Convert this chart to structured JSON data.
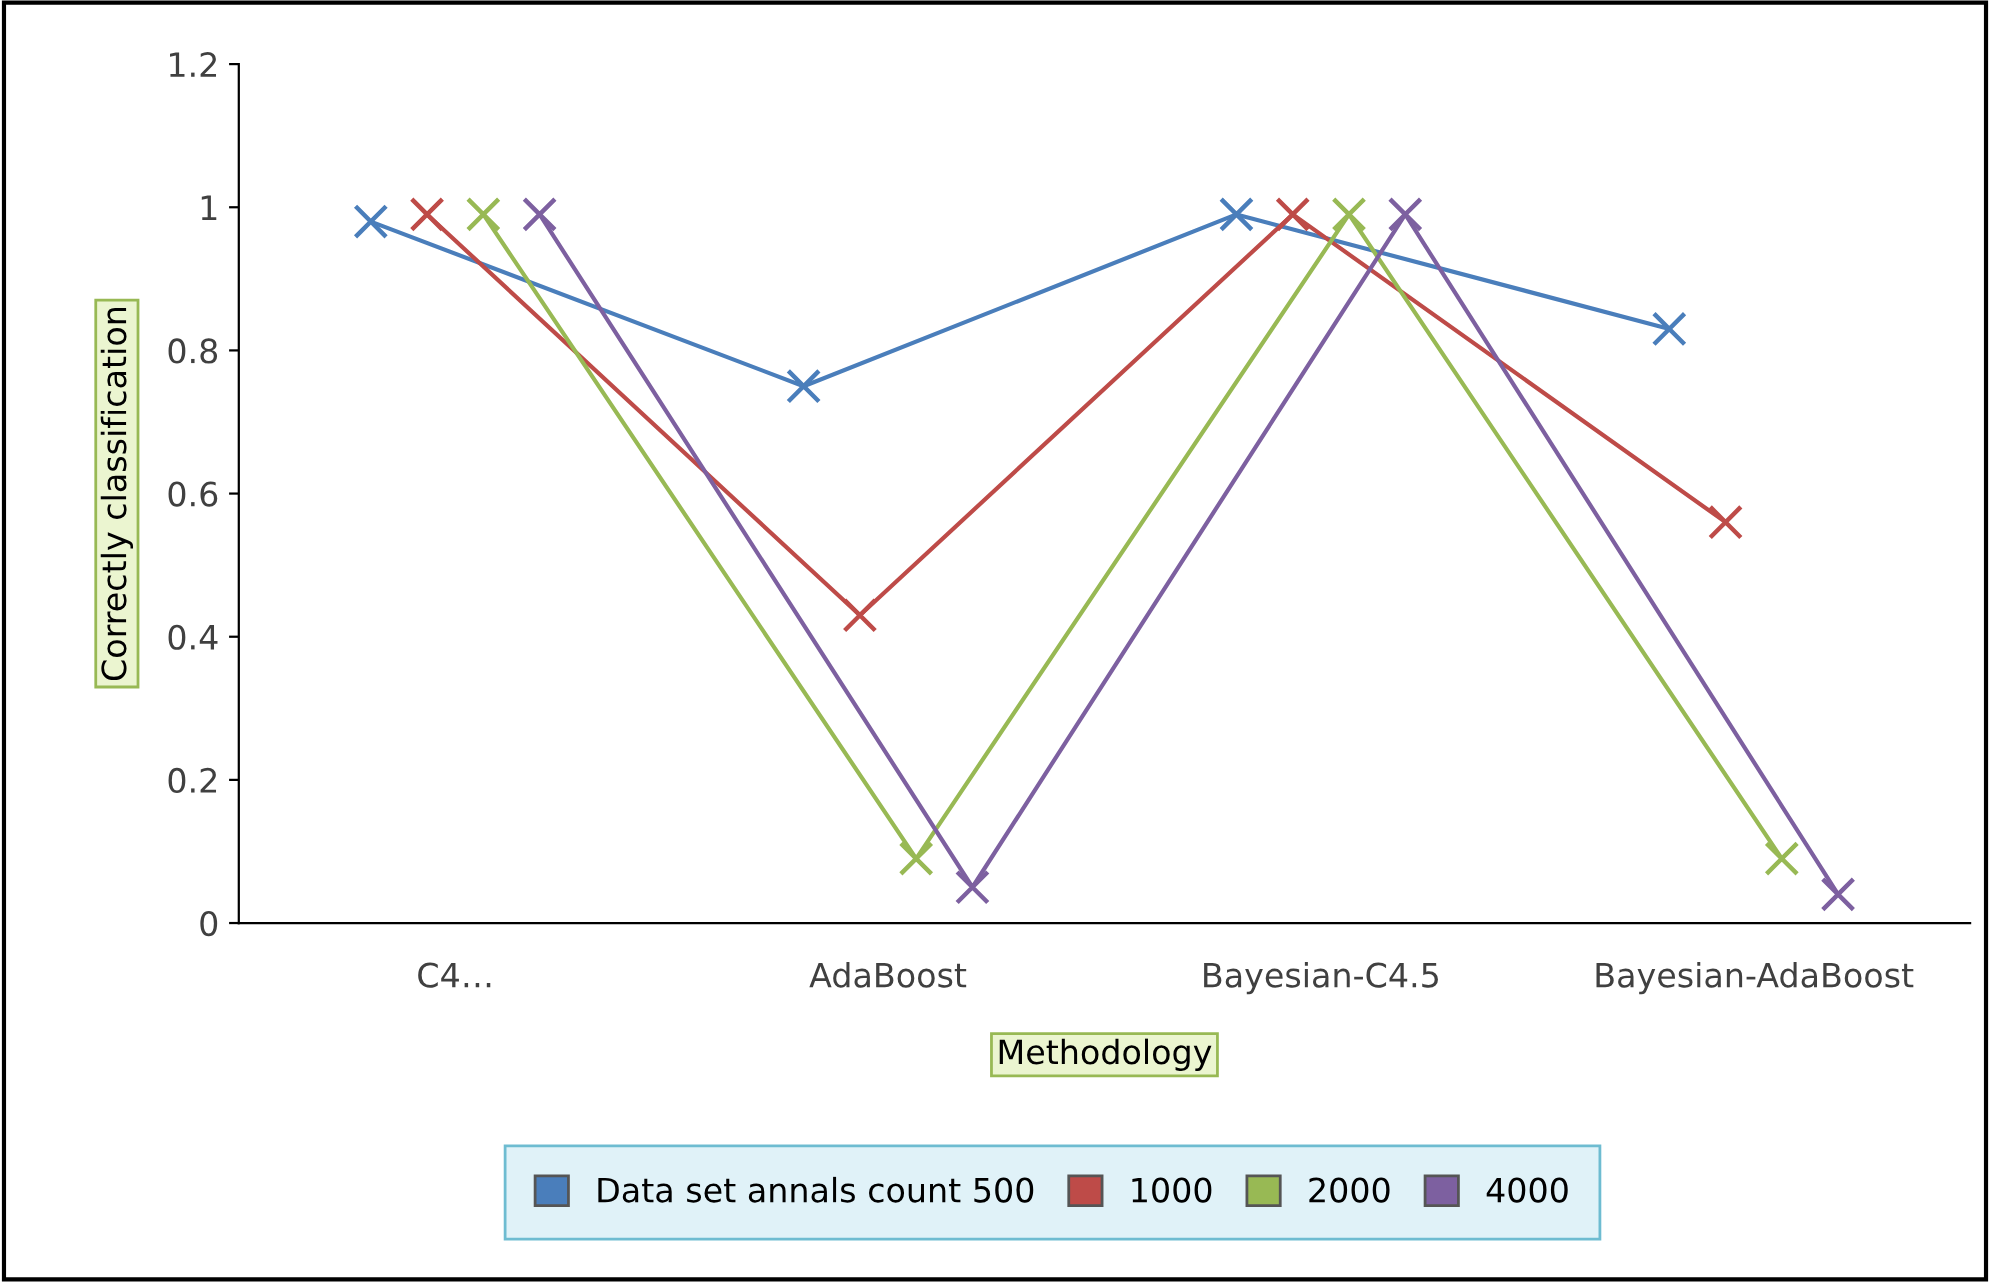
{
  "chart_data": {
    "type": "line",
    "xlabel": "Methodology",
    "ylabel": "Correctly classification",
    "categories": [
      "C4…",
      "AdaBoost",
      "Bayesian-C4.5",
      "Bayesian-AdaBoost"
    ],
    "series": [
      {
        "name": "Data set annals count 500",
        "color": "#4a7ebb",
        "values": [
          0.98,
          0.75,
          0.99,
          0.83
        ]
      },
      {
        "name": "1000",
        "color": "#be4b48",
        "values": [
          0.99,
          0.43,
          0.99,
          0.56
        ]
      },
      {
        "name": "2000",
        "color": "#98b954",
        "values": [
          0.99,
          0.09,
          0.99,
          0.09
        ]
      },
      {
        "name": "4000",
        "color": "#7d60a0",
        "values": [
          0.99,
          0.05,
          0.99,
          0.04
        ]
      }
    ],
    "ylim": [
      0,
      1.2
    ],
    "yticks": [
      0,
      0.2,
      0.4,
      0.6,
      0.8,
      1,
      1.2
    ],
    "marker": "cross",
    "line_style": "solid",
    "grid": false,
    "legend": "bottom"
  }
}
